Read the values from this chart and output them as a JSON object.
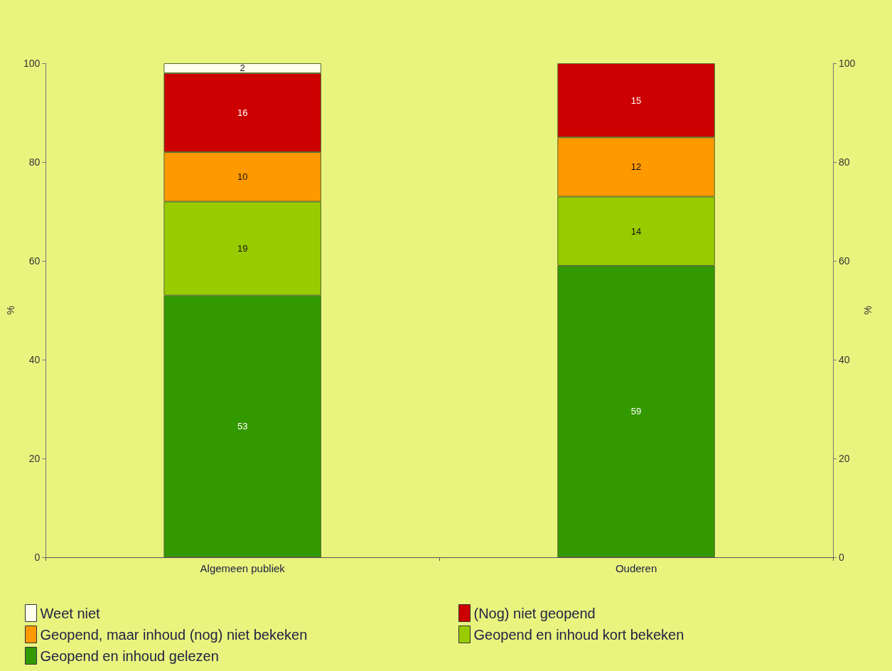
{
  "chart_data": {
    "type": "bar",
    "stacked": true,
    "categories": [
      "Algemeen publiek",
      "Ouderen"
    ],
    "series": [
      {
        "name": "Geopend en inhoud gelezen",
        "color": "#339900",
        "values": [
          53,
          59
        ]
      },
      {
        "name": "Geopend en inhoud kort bekeken",
        "color": "#99cc00",
        "values": [
          19,
          14
        ]
      },
      {
        "name": "Geopend, maar inhoud (nog) niet bekeken",
        "color": "#ff9900",
        "values": [
          10,
          12
        ]
      },
      {
        "name": "(Nog) niet geopend",
        "color": "#cc0000",
        "values": [
          16,
          15
        ]
      },
      {
        "name": "Weet niet",
        "color": "#ffffee",
        "values": [
          2,
          null
        ]
      }
    ],
    "ylabel": "%",
    "y2label": "%",
    "ylim": [
      0,
      100
    ],
    "yticks": [
      0,
      20,
      40,
      60,
      80,
      100
    ],
    "y2lim": [
      0,
      100
    ],
    "y2ticks": [
      0,
      20,
      40,
      60,
      80,
      100
    ],
    "data_labels": true,
    "grid": false,
    "legend": "bottom"
  }
}
